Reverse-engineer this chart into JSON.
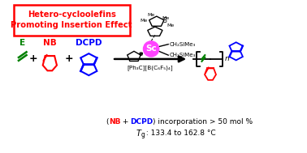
{
  "box_text_line1": "Hetero-cycloolefins",
  "box_text_line2": "Promoting Insertion Effect",
  "box_color": "#ff0000",
  "box_fill": "#ffffff",
  "label_E": "E",
  "label_NB": "NB",
  "label_DCPD": "DCPD",
  "color_E": "#008000",
  "color_NB": "#ff0000",
  "color_DCPD": "#0000ff",
  "color_black": "#000000",
  "catalyst_text": "Sc",
  "catalyst_color": "#ff44ff",
  "ligand_text1": "CH₂SiMe₃",
  "ligand_text2": "CH₂SiMe₃",
  "cocatalyst_text": "[Ph₃C][B(C₆F₅)₄]",
  "bg_color": "#ffffff"
}
